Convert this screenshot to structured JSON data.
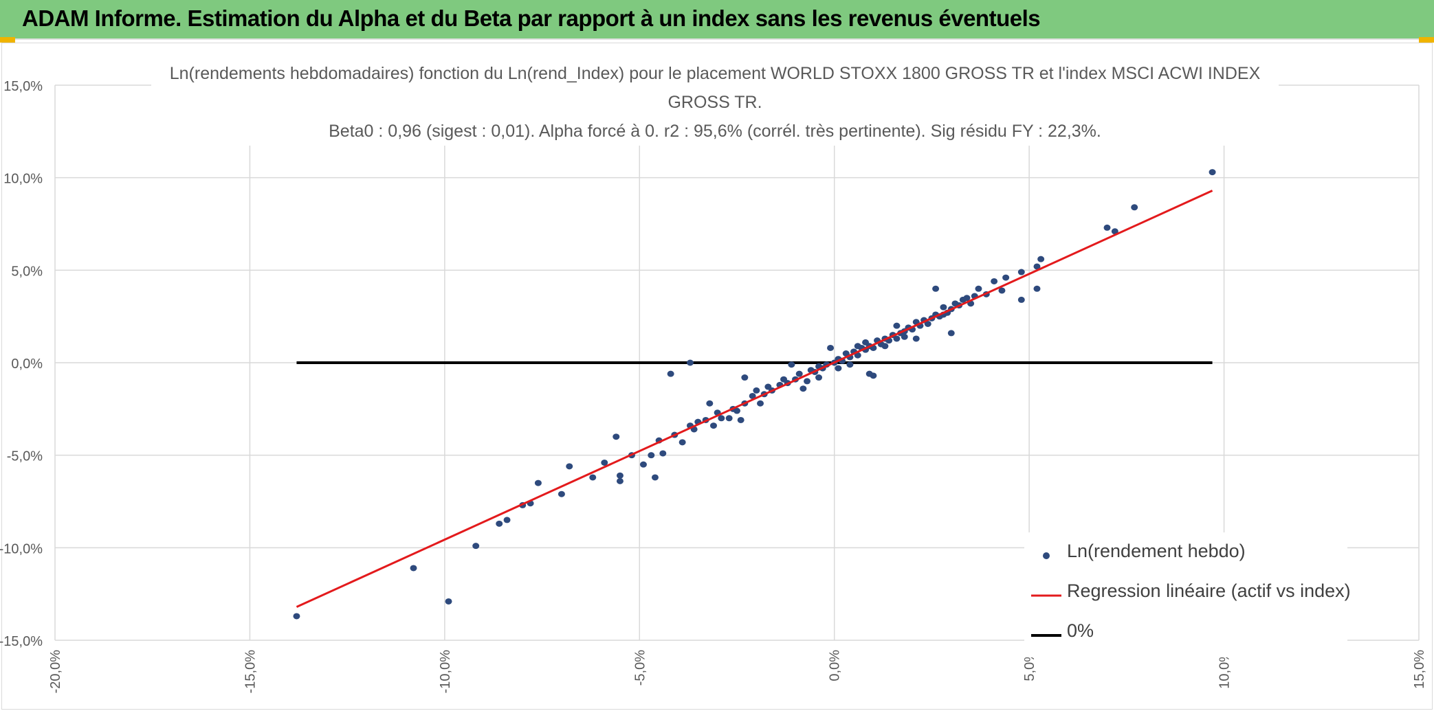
{
  "header": {
    "title": "ADAM Informe. Estimation du Alpha et du Beta par rapport à un index sans les revenus éventuels"
  },
  "colors": {
    "header_bg": "#7fc97f",
    "points": "#2e4a7d",
    "regression": "#e31a1c",
    "zero_line": "#000000",
    "grid": "#d9d9d9",
    "axis_text": "#595959"
  },
  "chart_data": {
    "type": "scatter",
    "title_line1": "Ln(rendements hebdomadaires) fonction du Ln(rend_Index) pour le placement WORLD STOXX 1800 GROSS TR et l'index MSCI ACWI INDEX GROSS TR.",
    "title_line2": "Beta0 : 0,96 (sigest : 0,01). Alpha forcé à 0. r2 : 95,6% (corrél. très pertinente). Sig résidu FY : 22,3%.",
    "xlim": [
      -20,
      15
    ],
    "ylim": [
      -15,
      15
    ],
    "x_unit": "%",
    "y_unit": "%",
    "xticks": [
      "-20,0%",
      "-15,0%",
      "-10,0%",
      "-5,0%",
      "0,0%",
      "5,0%",
      "10,0%",
      "15,0%"
    ],
    "yticks": [
      "15,0%",
      "10,0%",
      "5,0%",
      "0,0%",
      "-5,0%",
      "-10,0%",
      "-15,0%"
    ],
    "grid": true,
    "legend_position": "bottom-right",
    "series": [
      {
        "name": "Ln(rendement hebdo)",
        "kind": "scatter",
        "points": [
          [
            -13.8,
            -13.7
          ],
          [
            -10.8,
            -11.1
          ],
          [
            -9.9,
            -12.9
          ],
          [
            -9.2,
            -9.9
          ],
          [
            -8.6,
            -8.7
          ],
          [
            -8.4,
            -8.5
          ],
          [
            -8.0,
            -7.7
          ],
          [
            -7.8,
            -7.6
          ],
          [
            -7.6,
            -6.5
          ],
          [
            -7.0,
            -7.1
          ],
          [
            -6.8,
            -5.6
          ],
          [
            -6.2,
            -6.2
          ],
          [
            -5.9,
            -5.4
          ],
          [
            -5.6,
            -4.0
          ],
          [
            -5.5,
            -6.1
          ],
          [
            -5.5,
            -6.4
          ],
          [
            -5.2,
            -5.0
          ],
          [
            -4.9,
            -5.5
          ],
          [
            -4.7,
            -5.0
          ],
          [
            -4.6,
            -6.2
          ],
          [
            -4.5,
            -4.2
          ],
          [
            -4.4,
            -4.9
          ],
          [
            -4.1,
            -3.9
          ],
          [
            -3.9,
            -4.3
          ],
          [
            -3.7,
            -3.4
          ],
          [
            -3.6,
            -3.6
          ],
          [
            -3.5,
            -3.2
          ],
          [
            -3.2,
            -2.2
          ],
          [
            -3.1,
            -3.4
          ],
          [
            -2.9,
            -3.0
          ],
          [
            -2.7,
            -3.0
          ],
          [
            -2.5,
            -2.6
          ],
          [
            -2.4,
            -3.1
          ],
          [
            -2.3,
            -2.2
          ],
          [
            -2.0,
            -1.5
          ],
          [
            -1.8,
            -1.7
          ],
          [
            -1.6,
            -1.5
          ],
          [
            -1.4,
            -1.2
          ],
          [
            -1.2,
            -1.1
          ],
          [
            -1.0,
            -0.9
          ],
          [
            -0.9,
            -0.6
          ],
          [
            -0.8,
            -1.4
          ],
          [
            -0.6,
            -0.4
          ],
          [
            -0.5,
            -0.5
          ],
          [
            -0.3,
            -0.3
          ],
          [
            -0.2,
            -0.1
          ],
          [
            0.0,
            0.0
          ],
          [
            0.1,
            0.2
          ],
          [
            0.2,
            0.1
          ],
          [
            0.3,
            0.5
          ],
          [
            0.4,
            0.3
          ],
          [
            0.5,
            0.6
          ],
          [
            0.6,
            0.4
          ],
          [
            0.7,
            0.8
          ],
          [
            0.8,
            0.7
          ],
          [
            0.9,
            0.9
          ],
          [
            1.0,
            0.8
          ],
          [
            1.1,
            1.2
          ],
          [
            1.2,
            1.0
          ],
          [
            1.3,
            1.3
          ],
          [
            1.4,
            1.2
          ],
          [
            1.5,
            1.5
          ],
          [
            1.6,
            1.3
          ],
          [
            1.7,
            1.6
          ],
          [
            1.8,
            1.7
          ],
          [
            1.9,
            1.9
          ],
          [
            2.0,
            1.8
          ],
          [
            2.1,
            2.2
          ],
          [
            2.2,
            2.0
          ],
          [
            2.3,
            2.3
          ],
          [
            2.5,
            2.4
          ],
          [
            2.6,
            2.6
          ],
          [
            2.7,
            2.5
          ],
          [
            2.8,
            3.0
          ],
          [
            2.9,
            2.7
          ],
          [
            3.0,
            2.9
          ],
          [
            3.1,
            3.2
          ],
          [
            3.2,
            3.1
          ],
          [
            3.3,
            3.4
          ],
          [
            3.4,
            3.5
          ],
          [
            3.6,
            3.6
          ],
          [
            3.7,
            4.0
          ],
          [
            3.9,
            3.7
          ],
          [
            4.1,
            4.4
          ],
          [
            4.3,
            3.9
          ],
          [
            4.4,
            4.6
          ],
          [
            4.8,
            4.9
          ],
          [
            4.8,
            3.4
          ],
          [
            5.2,
            5.2
          ],
          [
            5.3,
            5.6
          ],
          [
            5.2,
            4.0
          ],
          [
            7.0,
            7.3
          ],
          [
            7.2,
            7.1
          ],
          [
            7.7,
            8.4
          ],
          [
            9.7,
            10.3
          ],
          [
            -4.2,
            -0.6
          ],
          [
            -3.7,
            0.0
          ],
          [
            -2.3,
            -0.8
          ],
          [
            -1.1,
            -0.1
          ],
          [
            -0.1,
            0.8
          ],
          [
            0.9,
            -0.6
          ],
          [
            1.0,
            -0.7
          ],
          [
            2.1,
            1.3
          ],
          [
            3.0,
            1.6
          ],
          [
            2.6,
            4.0
          ],
          [
            -0.7,
            -1.0
          ],
          [
            -0.4,
            -0.8
          ],
          [
            0.4,
            -0.1
          ],
          [
            0.8,
            1.1
          ],
          [
            1.6,
            2.0
          ],
          [
            -1.3,
            -0.9
          ],
          [
            -1.9,
            -2.2
          ],
          [
            -2.6,
            -2.5
          ],
          [
            0.1,
            -0.3
          ],
          [
            1.3,
            0.9
          ],
          [
            2.4,
            2.1
          ],
          [
            3.5,
            3.2
          ],
          [
            -2.1,
            -1.8
          ],
          [
            -1.7,
            -1.3
          ],
          [
            -0.4,
            -0.2
          ],
          [
            0.6,
            0.9
          ],
          [
            1.8,
            1.4
          ],
          [
            2.8,
            2.6
          ],
          [
            -3.3,
            -3.1
          ],
          [
            -3.0,
            -2.7
          ]
        ]
      },
      {
        "name": "Regression linéaire (actif vs index)",
        "kind": "line",
        "points": [
          [
            -13.8,
            -13.2
          ],
          [
            9.7,
            9.3
          ]
        ]
      },
      {
        "name": "0%",
        "kind": "line",
        "points": [
          [
            -13.8,
            0.0
          ],
          [
            9.7,
            0.0
          ]
        ]
      }
    ]
  }
}
